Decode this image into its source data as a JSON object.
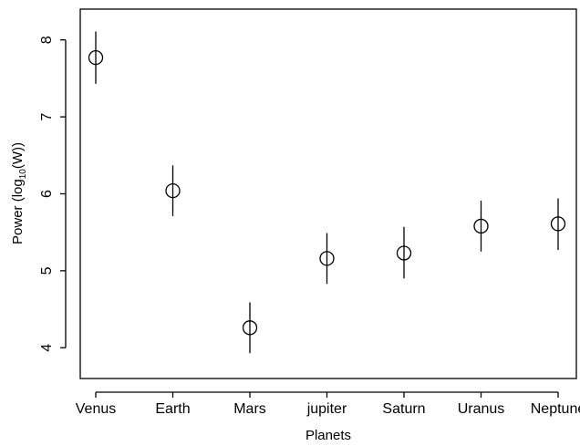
{
  "chart_data": {
    "type": "scatter",
    "title": "",
    "xlabel": "Planets",
    "ylabel": {
      "prefix": "Power (log",
      "subscript": "10",
      "suffix": "(W))"
    },
    "categories": [
      "Venus",
      "Earth",
      "Mars",
      "jupiter",
      "Saturn",
      "Uranus",
      "Neptune"
    ],
    "series": [
      {
        "values": [
          7.77,
          6.04,
          4.26,
          5.16,
          5.23,
          5.58,
          5.61
        ],
        "lower": [
          7.43,
          5.71,
          3.93,
          4.83,
          4.9,
          5.25,
          5.27
        ],
        "upper": [
          8.11,
          6.37,
          4.59,
          5.49,
          5.57,
          5.91,
          5.94
        ]
      }
    ],
    "ylim": [
      3.6,
      8.4
    ],
    "yticks": [
      4,
      5,
      6,
      7,
      8
    ],
    "marker": "open-circle",
    "error_bars": true,
    "grid": false,
    "legend": "none"
  }
}
